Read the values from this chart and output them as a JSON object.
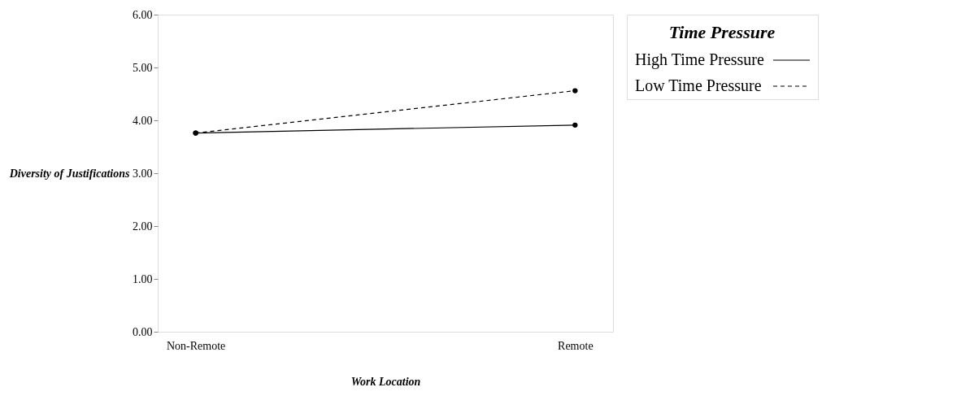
{
  "chart_data": {
    "type": "line",
    "xlabel": "Work Location",
    "ylabel": "Diversity of Justifications",
    "legend_title": "Time Pressure",
    "categories": [
      "Non-Remote",
      "Remote"
    ],
    "series": [
      {
        "name": "High Time Pressure",
        "color": "#000000",
        "line_style": "solid",
        "values": [
          3.76,
          3.91
        ]
      },
      {
        "name": "Low Time Pressure",
        "color": "#000000",
        "line_style": "dashed",
        "values": [
          3.76,
          4.56
        ]
      }
    ],
    "ylim": [
      0,
      6
    ],
    "yticks": [
      {
        "value": 0,
        "label": "0.00"
      },
      {
        "value": 1,
        "label": "1.00"
      },
      {
        "value": 2,
        "label": "2.00"
      },
      {
        "value": 3,
        "label": "3.00"
      },
      {
        "value": 4,
        "label": "4.00"
      },
      {
        "value": 5,
        "label": "5.00"
      },
      {
        "value": 6,
        "label": "6.00"
      }
    ],
    "grid": false,
    "legend": "top right",
    "marker": "circle"
  }
}
